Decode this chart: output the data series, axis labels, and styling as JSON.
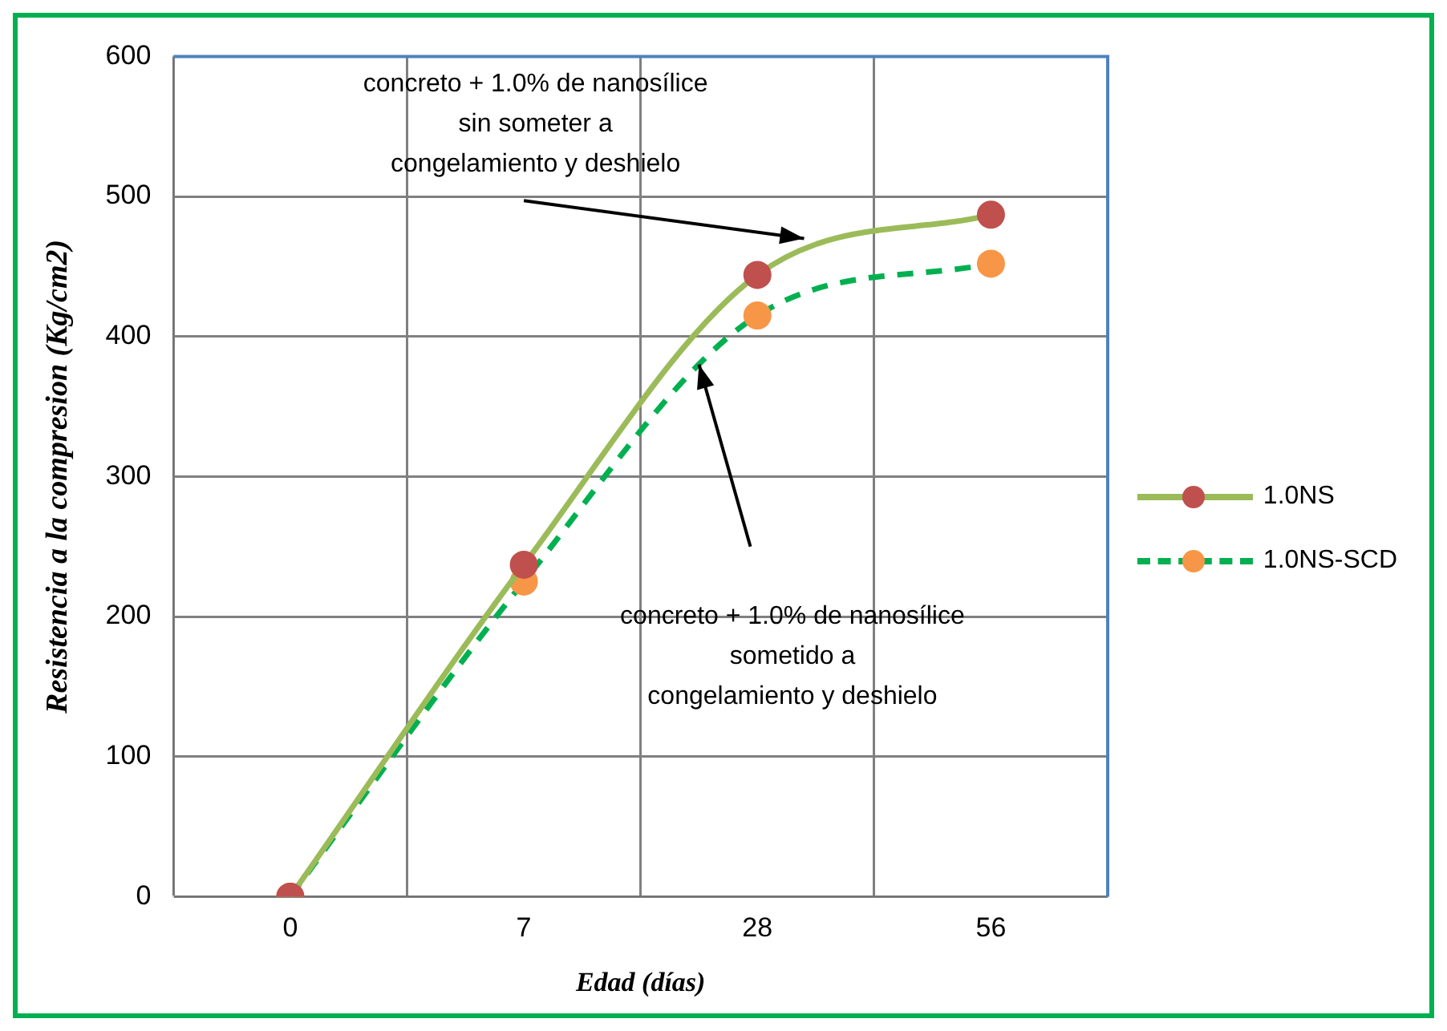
{
  "chart_data": {
    "type": "line",
    "xlabel": "Edad (días)",
    "ylabel": "Resistencia a la compresion (Kg/cm2)",
    "categories": [
      "0",
      "7",
      "28",
      "56"
    ],
    "series": [
      {
        "name": "1.0NS",
        "color": "#9bbb59",
        "colors": [
          "#c0504d",
          "#c0504d",
          "#c0504d",
          "#c0504d"
        ],
        "line_style": "solid",
        "values": [
          0,
          237,
          444,
          487
        ]
      },
      {
        "name": "1.0NS-SCD",
        "color": "#00b050",
        "colors": [
          "#f79646",
          "#f79646",
          "#f79646",
          "#f79646"
        ],
        "line_style": "dashed",
        "values": [
          0,
          225,
          415,
          452
        ]
      }
    ],
    "ylim": [
      0,
      600
    ],
    "yticks": [
      0,
      100,
      200,
      300,
      400,
      500,
      600
    ],
    "grid": true,
    "legend": "right",
    "marker": "circle",
    "annotations": [
      "concreto + 1.0% de nanosílice\nsin someter a\ncongelamiento y deshielo",
      "concreto + 1.0% de nanosílice\nsometido a\ncongelamiento y deshielo"
    ]
  }
}
